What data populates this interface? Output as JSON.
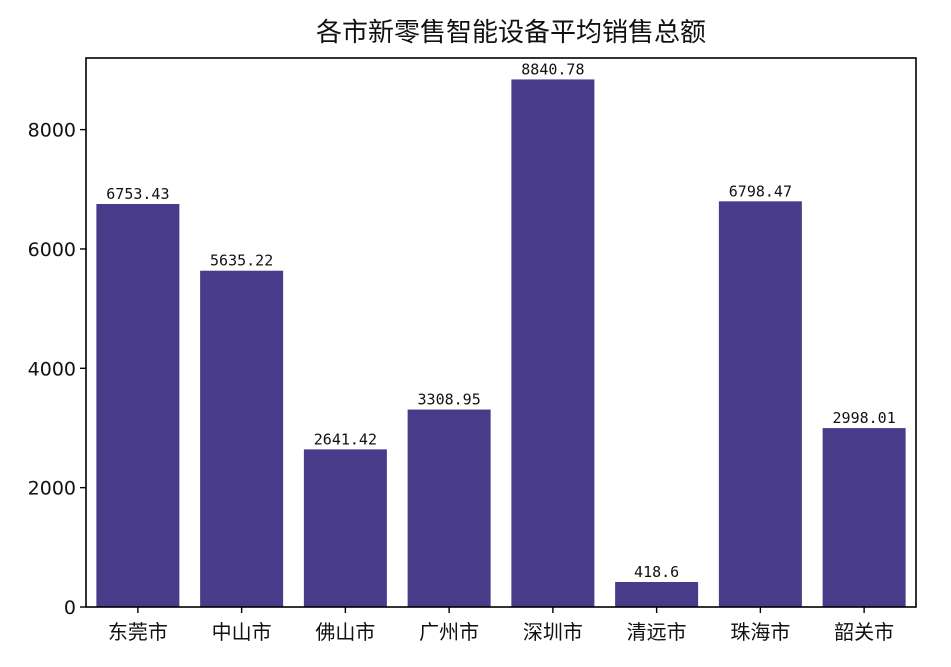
{
  "chart_data": {
    "type": "bar",
    "title": "各市新零售智能设备平均销售总额",
    "categories": [
      "东莞市",
      "中山市",
      "佛山市",
      "广州市",
      "深圳市",
      "清远市",
      "珠海市",
      "韶关市"
    ],
    "values": [
      6753.43,
      5635.22,
      2641.42,
      3308.95,
      8840.78,
      418.6,
      6798.47,
      2998.01
    ],
    "value_labels": [
      "6753.43",
      "5635.22",
      "2641.42",
      "3308.95",
      "8840.78",
      "418.6",
      "6798.47",
      "2998.01"
    ],
    "xlabel": "",
    "ylabel": "",
    "ylim": [
      0,
      9200
    ],
    "yticks": [
      0,
      2000,
      4000,
      6000,
      8000
    ],
    "bar_color": "#473b8a",
    "grid": false,
    "legend": "none"
  }
}
